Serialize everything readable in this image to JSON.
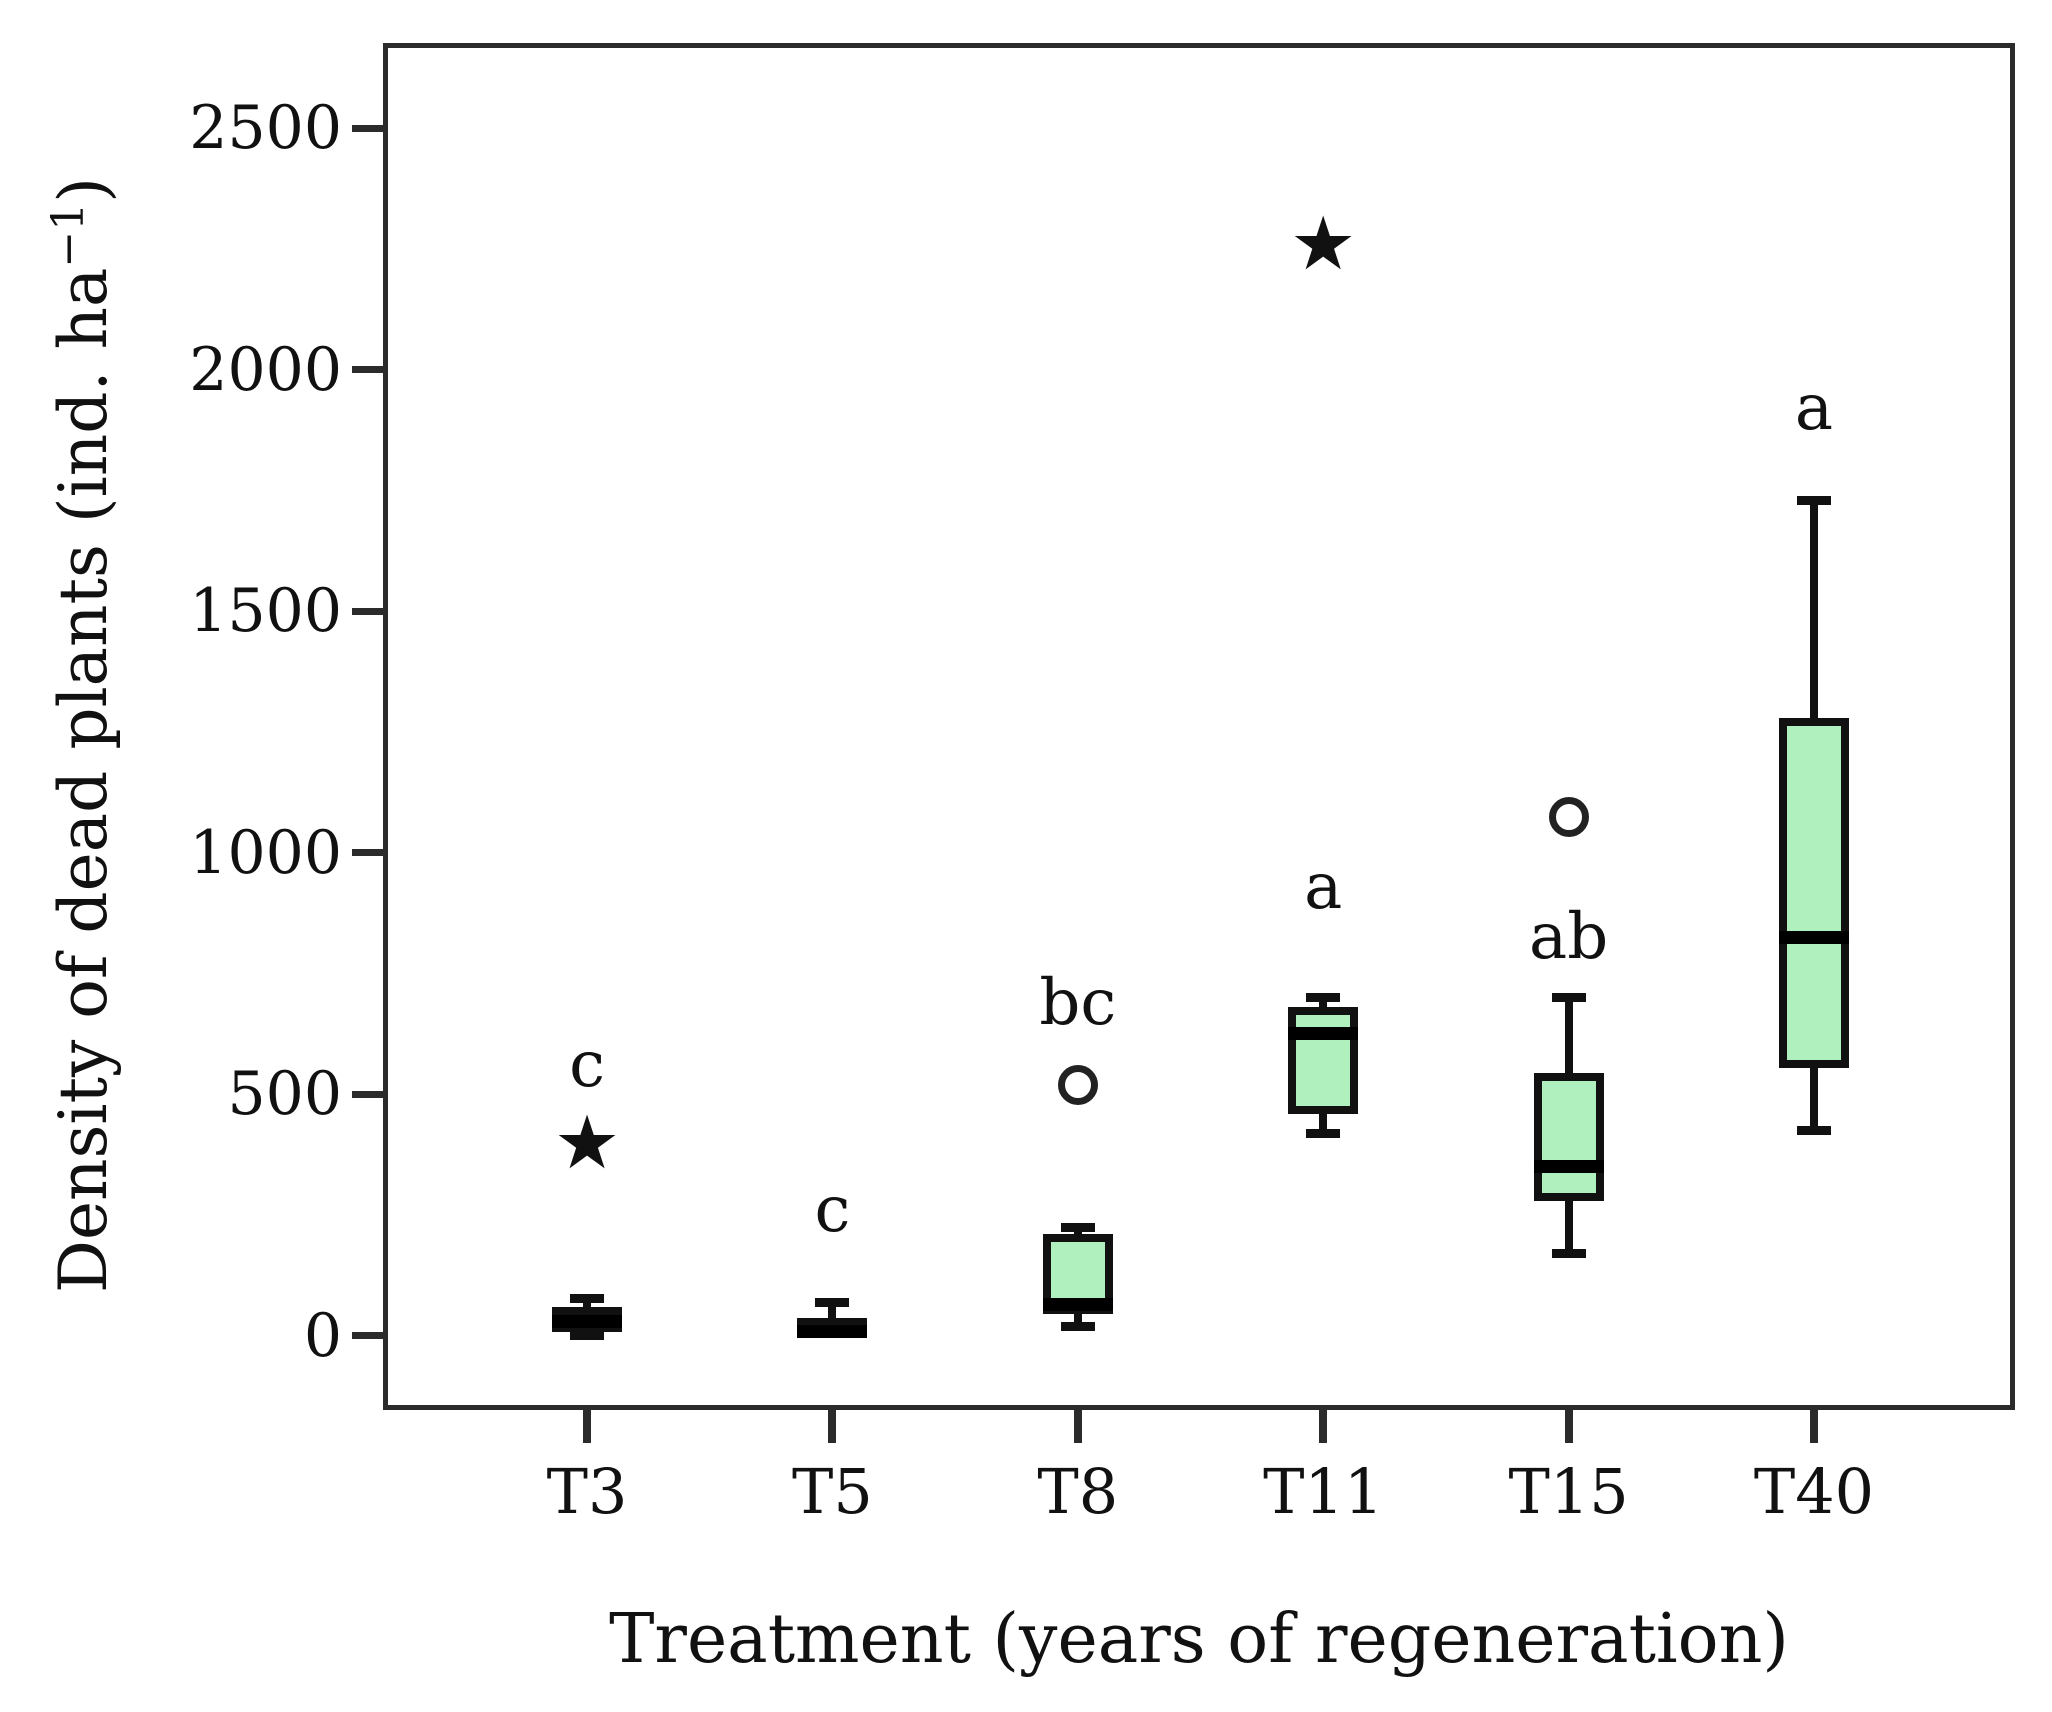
{
  "chart_data": {
    "type": "box",
    "title": "",
    "xlabel": "Treatment (years of regeneration)",
    "ylabel": "Density of dead plants (ind. ha−1)",
    "ylabel_parts": {
      "main": "Density of dead plants (ind. ha",
      "sup": "−1",
      "close": ")"
    },
    "ylim": [
      -143,
      2666
    ],
    "yticks": [
      0,
      500,
      1000,
      1500,
      2000,
      2500
    ],
    "grid": false,
    "legend": null,
    "categories": [
      "T3",
      "T5",
      "T8",
      "T11",
      "T15",
      "T40"
    ],
    "series": [
      {
        "category": "T3",
        "whisker_low": 0,
        "q1": 8,
        "median": 30,
        "q3": 60,
        "whisker_high": 78,
        "letter": "c",
        "letter_y": 560,
        "outliers": [
          {
            "shape": "star",
            "value": 400
          }
        ]
      },
      {
        "category": "T5",
        "whisker_low": 0,
        "q1": 0,
        "median": 10,
        "q3": 38,
        "whisker_high": 70,
        "letter": "c",
        "letter_y": 260,
        "outliers": []
      },
      {
        "category": "T8",
        "whisker_low": 20,
        "q1": 45,
        "median": 65,
        "q3": 210,
        "whisker_high": 225,
        "letter": "bc",
        "letter_y": 690,
        "outliers": [
          {
            "shape": "circle",
            "value": 520
          }
        ]
      },
      {
        "category": "T11",
        "whisker_low": 420,
        "q1": 460,
        "median": 625,
        "q3": 680,
        "whisker_high": 700,
        "letter": "a",
        "letter_y": 930,
        "outliers": [
          {
            "shape": "star",
            "value": 2260
          }
        ]
      },
      {
        "category": "T15",
        "whisker_low": 170,
        "q1": 280,
        "median": 350,
        "q3": 545,
        "whisker_high": 700,
        "letter": "ab",
        "letter_y": 825,
        "outliers": [
          {
            "shape": "circle",
            "value": 1075
          }
        ]
      },
      {
        "category": "T40",
        "whisker_low": 425,
        "q1": 555,
        "median": 825,
        "q3": 1280,
        "whisker_high": 1730,
        "letter": "a",
        "letter_y": 1920,
        "outliers": []
      }
    ],
    "colors": {
      "box_fill": "#b0f0bf",
      "box_border": "#111111",
      "median": "#000000",
      "frame": "#2b2b2b",
      "text": "#111111",
      "background": "#ffffff"
    }
  }
}
